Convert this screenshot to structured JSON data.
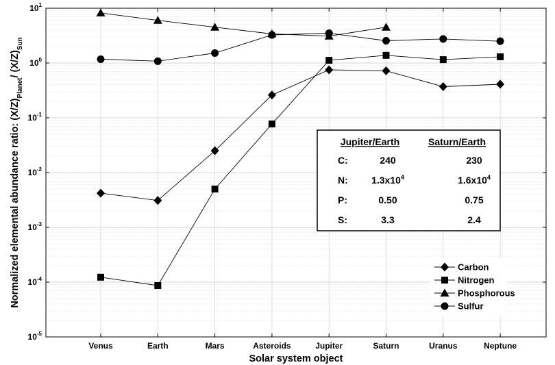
{
  "chart_data": {
    "type": "line",
    "title": "",
    "xlabel": "Solar system object",
    "ylabel": "Normalized elemental abundance ratio: (X/Z)",
    "ylabel_sub_planet": "Planet",
    "ylabel_sep": "/ (X/Z)",
    "ylabel_sub_sun": "Sun",
    "yscale": "log",
    "ylim": [
      1e-05,
      10
    ],
    "grid": true,
    "legend_position": "lower-right",
    "categories": [
      "Venus",
      "Earth",
      "Mars",
      "Asteroids",
      "Jupiter",
      "Saturn",
      "Uranus",
      "Neptune"
    ],
    "y_ticks": [
      {
        "value": 10,
        "base": "10",
        "exp": "1"
      },
      {
        "value": 1,
        "base": "10",
        "exp": "0"
      },
      {
        "value": 0.1,
        "base": "10",
        "exp": "-1"
      },
      {
        "value": 0.01,
        "base": "10",
        "exp": "-2"
      },
      {
        "value": 0.001,
        "base": "10",
        "exp": "-3"
      },
      {
        "value": 0.0001,
        "base": "10",
        "exp": "-4"
      },
      {
        "value": 1e-05,
        "base": "10",
        "exp": "-5"
      }
    ],
    "series": [
      {
        "name": "Carbon",
        "marker": "diamond",
        "values": [
          0.0042,
          0.0031,
          0.025,
          0.26,
          0.75,
          0.72,
          0.37,
          0.41
        ]
      },
      {
        "name": "Nitrogen",
        "marker": "square",
        "values": [
          0.000123,
          8.65e-05,
          0.005,
          0.077,
          1.12,
          1.38,
          1.15,
          1.3
        ]
      },
      {
        "name": "Phosphorous",
        "marker": "triangle",
        "values": [
          8.2,
          6.0,
          4.5,
          3.4,
          3.1,
          4.5,
          null,
          null
        ]
      },
      {
        "name": "Sulfur",
        "marker": "circle",
        "values": [
          1.17,
          1.08,
          1.52,
          3.25,
          3.5,
          2.55,
          2.75,
          2.5
        ]
      }
    ],
    "inset_table": {
      "headers": [
        "Jupiter/Earth",
        "Saturn/Earth"
      ],
      "rows": [
        {
          "label": "C:",
          "jupiter": "240",
          "saturn": "230"
        },
        {
          "label": "N:",
          "jupiter_base": "1.3x10",
          "jupiter_exp": "4",
          "saturn_base": "1.6x10",
          "saturn_exp": "4"
        },
        {
          "label": "P:",
          "jupiter": "0.50",
          "saturn": "0.75"
        },
        {
          "label": "S:",
          "jupiter": "3.3",
          "saturn": "2.4"
        }
      ]
    }
  }
}
